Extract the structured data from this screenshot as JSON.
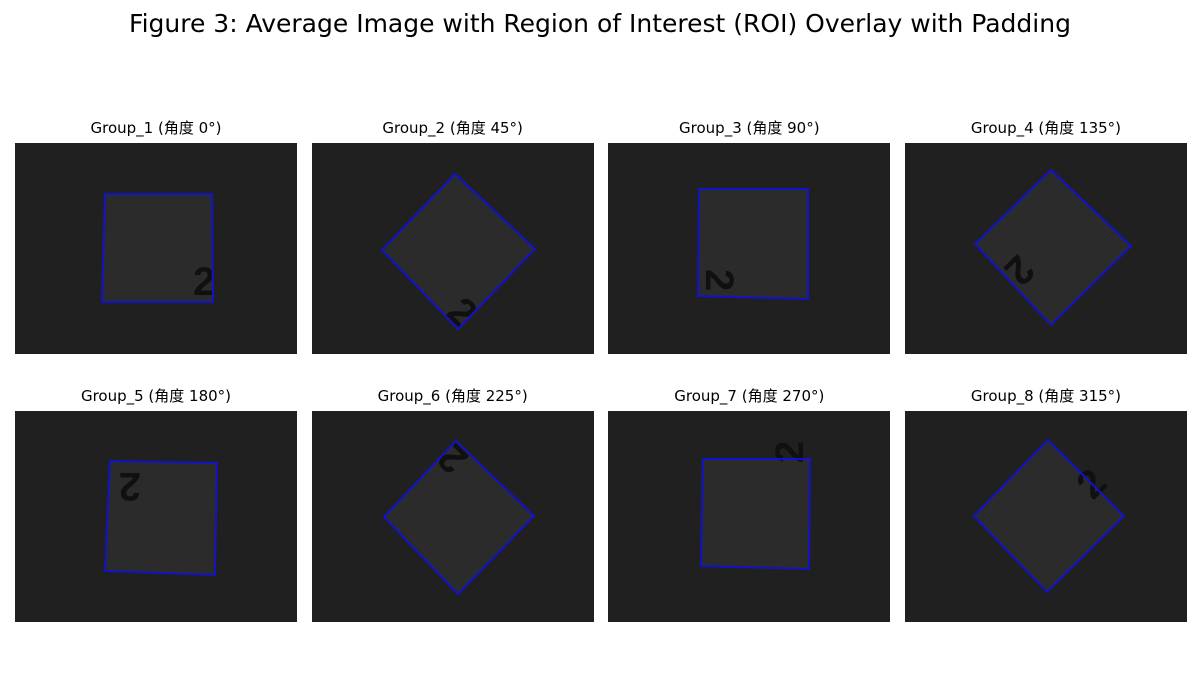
{
  "figure": {
    "title": "Figure 3: Average Image with Region of Interest (ROI) Overlay with Padding"
  },
  "colors": {
    "background": "#202020",
    "roi_outline": "#1010c8",
    "part_fill": "#2c2c2c",
    "digit": "#101010"
  },
  "panels": [
    {
      "title": "Group_1 (角度 0°)",
      "angle": 0,
      "digit": "2"
    },
    {
      "title": "Group_2 (角度 45°)",
      "angle": 45,
      "digit": "2"
    },
    {
      "title": "Group_3 (角度 90°)",
      "angle": 90,
      "digit": "2"
    },
    {
      "title": "Group_4 (角度 135°)",
      "angle": 135,
      "digit": "2"
    },
    {
      "title": "Group_5 (角度 180°)",
      "angle": 180,
      "digit": "2"
    },
    {
      "title": "Group_6 (角度 225°)",
      "angle": 225,
      "digit": "2"
    },
    {
      "title": "Group_7 (角度 270°)",
      "angle": 270,
      "digit": "2"
    },
    {
      "title": "Group_8 (角度 315°)",
      "angle": 315,
      "digit": "2"
    }
  ]
}
